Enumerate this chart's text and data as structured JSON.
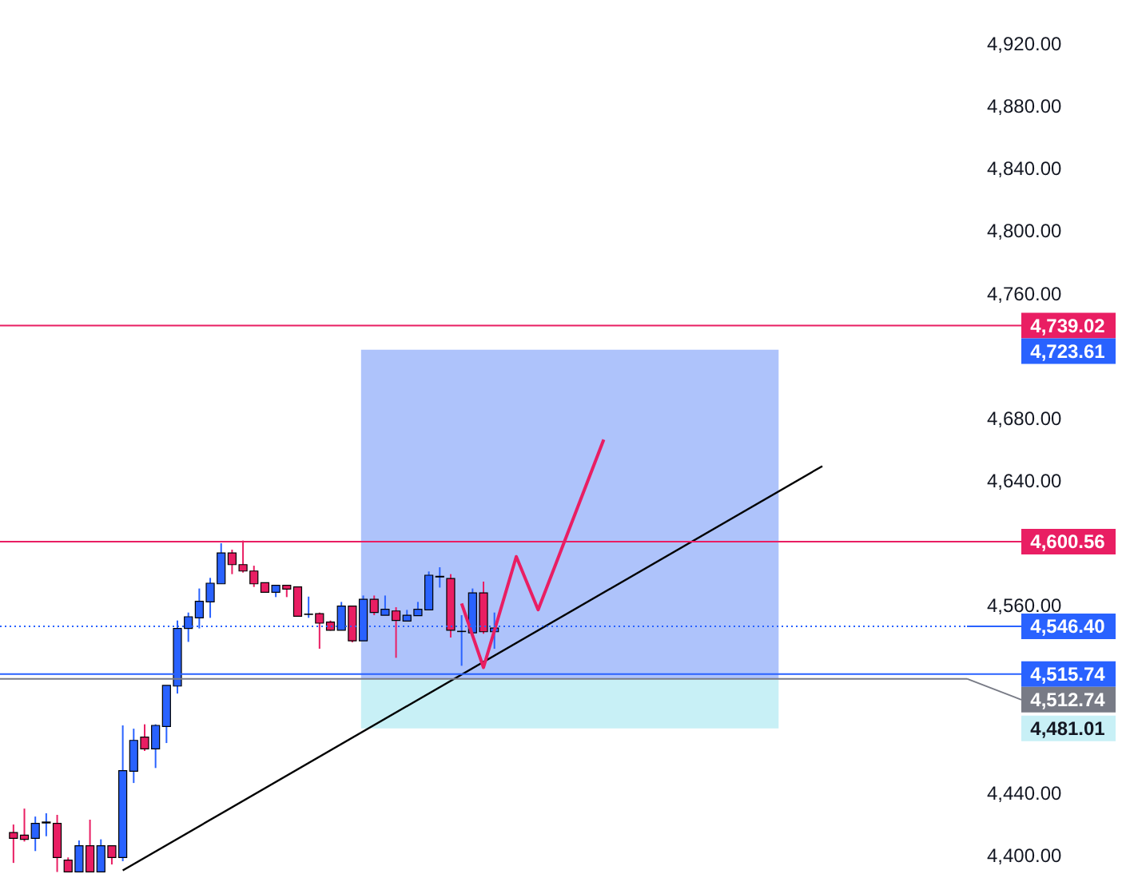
{
  "chart_data": {
    "type": "candlestick",
    "categories": [
      null,
      null,
      null,
      null,
      null,
      null,
      null,
      null,
      null,
      null,
      null,
      null,
      null,
      null,
      null,
      null,
      null,
      null,
      null,
      null,
      null,
      null,
      null,
      null,
      null,
      null,
      null,
      null,
      null,
      null,
      null,
      null,
      null,
      null,
      null,
      null,
      null,
      null,
      null,
      null,
      null,
      null,
      null,
      null,
      null,
      null,
      null,
      null,
      null,
      null,
      null,
      null,
      null,
      null,
      null,
      null,
      null,
      null,
      null,
      null,
      null,
      null,
      null,
      null,
      null,
      null,
      null,
      null,
      null,
      null,
      null,
      null,
      null,
      null,
      null,
      null,
      null,
      null,
      null,
      null,
      null,
      null,
      null,
      null,
      null,
      null,
      null
    ],
    "tick_labels": "y",
    "ohlc": [
      [
        4414.3,
        4419.4,
        4394.8,
        4410.5
      ],
      [
        4412.6,
        4429.6,
        4408.5,
        4409.9
      ],
      [
        4410.5,
        4424.5,
        4402.4,
        4420.1
      ],
      [
        4420.4,
        4426.6,
        4411.9,
        4421.0
      ],
      [
        4420.1,
        4425.6,
        4389,
        4398.3
      ],
      [
        4396.6,
        4398.3,
        4389,
        4389
      ],
      [
        4389,
        4409.2,
        4389,
        4405.8
      ],
      [
        4405.8,
        4422.5,
        4389,
        4389
      ],
      [
        4389,
        4409.9,
        4389,
        4405.8
      ],
      [
        4405.8,
        4405.8,
        4393.8,
        4398.3
      ],
      [
        4398.3,
        4482.9,
        4395.9,
        4453.9
      ],
      [
        4453.5,
        4480.8,
        4446.0,
        4473.3
      ],
      [
        4475.4,
        4483.6,
        4466.5,
        4467.9
      ],
      [
        4467.9,
        4483.6,
        4455.6,
        4482.9
      ],
      [
        4482.2,
        4508.5,
        4471.6,
        4508.5
      ],
      [
        4508.1,
        4550.1,
        4503.3,
        4545.0
      ],
      [
        4545.0,
        4555.2,
        4536.4,
        4552.5
      ],
      [
        4551.8,
        4570.6,
        4545.0,
        4562.4
      ],
      [
        4562.0,
        4577.4,
        4551.8,
        4574.0
      ],
      [
        4573.6,
        4599.6,
        4573.6,
        4593.4
      ],
      [
        4593.4,
        4595.5,
        4579.8,
        4585.9
      ],
      [
        4585.9,
        4601.3,
        4580.8,
        4581.8
      ],
      [
        4581.8,
        4585.2,
        4571.6,
        4573.6
      ],
      [
        4574.3,
        4574.3,
        4568.2,
        4568.2
      ],
      [
        4568.2,
        4572.6,
        4565.1,
        4572.6
      ],
      [
        4572.6,
        4572.6,
        4565.1,
        4570.2
      ],
      [
        4571.6,
        4571.6,
        4552.8,
        4552.8
      ],
      [
        4554.2,
        4565.4,
        4551.8,
        4554.0
      ],
      [
        4554.5,
        4555.2,
        4532.0,
        4548.4
      ],
      [
        4549.1,
        4550.1,
        4543.6,
        4543.9
      ],
      [
        4543.9,
        4562.0,
        4543.9,
        4559.3
      ],
      [
        4559.3,
        4559.3,
        4536.1,
        4537.1
      ],
      [
        4537.1,
        4566.1,
        4537.1,
        4563.7
      ],
      [
        4563.7,
        4566.1,
        4553.5,
        4555.2
      ],
      [
        4553.5,
        4566.1,
        4553.5,
        4557.3
      ],
      [
        4556.2,
        4558.6,
        4526.2,
        4550.1
      ],
      [
        4549.7,
        4556.9,
        4549.7,
        4553.5
      ],
      [
        4553.2,
        4562.0,
        4553.2,
        4557.3
      ],
      [
        4556.9,
        4581.5,
        4556.9,
        4579.1
      ],
      [
        4578.4,
        4584.2,
        4571.2,
        4578.0
      ],
      [
        4577.0,
        4579.8,
        4539.2,
        4543.9
      ],
      [
        4543.2,
        4553.5,
        4521.1,
        4543.0
      ],
      [
        4542.2,
        4570.6,
        4541.6,
        4567.8
      ],
      [
        4567.8,
        4575.0,
        4541.6,
        4542.9
      ],
      [
        4542.9,
        4555.2,
        4532.0,
        4545.3
      ],
      null,
      null,
      null,
      null,
      null,
      null,
      null,
      null,
      null,
      null,
      null,
      null,
      null,
      null,
      null,
      null,
      null,
      null,
      null,
      null,
      null,
      null,
      null,
      null,
      null,
      null,
      null,
      null,
      null,
      null,
      null,
      null,
      null,
      null,
      null,
      null,
      null,
      null,
      null,
      null,
      null,
      null
    ],
    "colors": [
      "#e91e63",
      "#e91e63",
      "#2962ff",
      "#2962ff",
      "#e91e63",
      "#e91e63",
      "#2962ff",
      "#e91e63",
      "#2962ff",
      "#e91e63",
      "#2962ff",
      "#2962ff",
      "#e91e63",
      "#2962ff",
      "#2962ff",
      "#2962ff",
      "#2962ff",
      "#2962ff",
      "#2962ff",
      "#2962ff",
      "#e91e63",
      "#e91e63",
      "#e91e63",
      "#e91e63",
      "#2962ff",
      "#e91e63",
      "#e91e63",
      "#2962ff",
      "#e91e63",
      "#e91e63",
      "#2962ff",
      "#e91e63",
      "#2962ff",
      "#e91e63",
      "#2962ff",
      "#e91e63",
      "#2962ff",
      "#2962ff",
      "#2962ff",
      "#2962ff",
      "#e91e63",
      "#2962ff",
      "#2962ff",
      "#e91e63",
      "#2962ff",
      null,
      null,
      null,
      null,
      null,
      null,
      null,
      null,
      null,
      null,
      null,
      null,
      null,
      null,
      null,
      null,
      null,
      null,
      null,
      null,
      null,
      null,
      null,
      null,
      null,
      null,
      null,
      null,
      null,
      null,
      null,
      null,
      null,
      null,
      null,
      null,
      null,
      null,
      null,
      null,
      null,
      null
    ],
    "series": [
      {
        "type": "line",
        "color": "#000000",
        "values": [
          null,
          null,
          null,
          null,
          null,
          null,
          null,
          null,
          null,
          null,
          4390,
          null,
          null,
          null,
          null,
          null,
          null,
          null,
          null,
          null,
          null,
          null,
          null,
          null,
          null,
          null,
          null,
          null,
          null,
          null,
          null,
          null,
          null,
          null,
          null,
          null,
          null,
          null,
          null,
          null,
          null,
          null,
          null,
          null,
          null,
          null,
          null,
          null,
          null,
          null,
          null,
          null,
          null,
          null,
          null,
          null,
          null,
          null,
          null,
          null,
          null,
          null,
          null,
          null,
          null,
          null,
          null,
          null,
          null,
          null,
          null,
          null,
          null,
          null,
          4649,
          null,
          null,
          null,
          null,
          null,
          null,
          null,
          null,
          null,
          null,
          null,
          null
        ]
      },
      {
        "type": "line",
        "color": "#e91e63",
        "values": [
          null,
          null,
          null,
          null,
          null,
          null,
          null,
          null,
          null,
          null,
          null,
          null,
          null,
          null,
          null,
          null,
          null,
          null,
          null,
          null,
          null,
          null,
          null,
          null,
          null,
          null,
          null,
          null,
          null,
          null,
          null,
          null,
          null,
          null,
          null,
          null,
          null,
          null,
          null,
          null,
          null,
          4561,
          null,
          4520,
          null,
          null,
          4591,
          null,
          4557,
          null,
          null,
          null,
          null,
          null,
          4666,
          null,
          null,
          null,
          null,
          null,
          null,
          null,
          null,
          null,
          null,
          null,
          null,
          null,
          null,
          null,
          null,
          null,
          null,
          null,
          null,
          null,
          null,
          null,
          null,
          null,
          null,
          null,
          null,
          null,
          null,
          null,
          null
        ]
      }
    ],
    "ylim": [
      4387.7,
      4947.6
    ],
    "yticks": [
      {
        "value": 4400,
        "label": "4,400.00"
      },
      {
        "value": 4440,
        "label": "4,440.00"
      },
      {
        "value": 4560,
        "label": "4,560.00"
      },
      {
        "value": 4640,
        "label": "4,640.00"
      },
      {
        "value": 4680,
        "label": "4,680.00"
      },
      {
        "value": 4760,
        "label": "4,760.00"
      },
      {
        "value": 4800,
        "label": "4,800.00"
      },
      {
        "value": 4840,
        "label": "4,840.00"
      },
      {
        "value": 4880,
        "label": "4,880.00"
      },
      {
        "value": 4920,
        "label": "4,920.00"
      }
    ],
    "bands": [
      {
        "axis": "y",
        "from": 4512.74,
        "to": 4723.61,
        "color": "#aec3fb"
      },
      {
        "axis": "y",
        "from": 4481.01,
        "to": 4512.74,
        "color": "#c8f0f6"
      }
    ],
    "annotations": [
      "4,723.61",
      "4,481.01"
    ],
    "ref_lines": [
      {
        "axis": "y",
        "value": 4739.02,
        "label": "4,739.02",
        "color": "#e91e63"
      },
      {
        "axis": "y",
        "value": 4600.56,
        "label": "4,600.56",
        "color": "#e91e63"
      },
      {
        "axis": "y",
        "value": 4546.4,
        "label": "4,546.40",
        "color": "#2962ff",
        "line_style": "dotted"
      },
      {
        "axis": "y",
        "value": 4515.74,
        "label": "4,515.74",
        "color": "#2962ff"
      },
      {
        "axis": "y",
        "value": 4512.74,
        "label": "4,512.74",
        "color": "#787b86"
      }
    ],
    "grid": false
  }
}
